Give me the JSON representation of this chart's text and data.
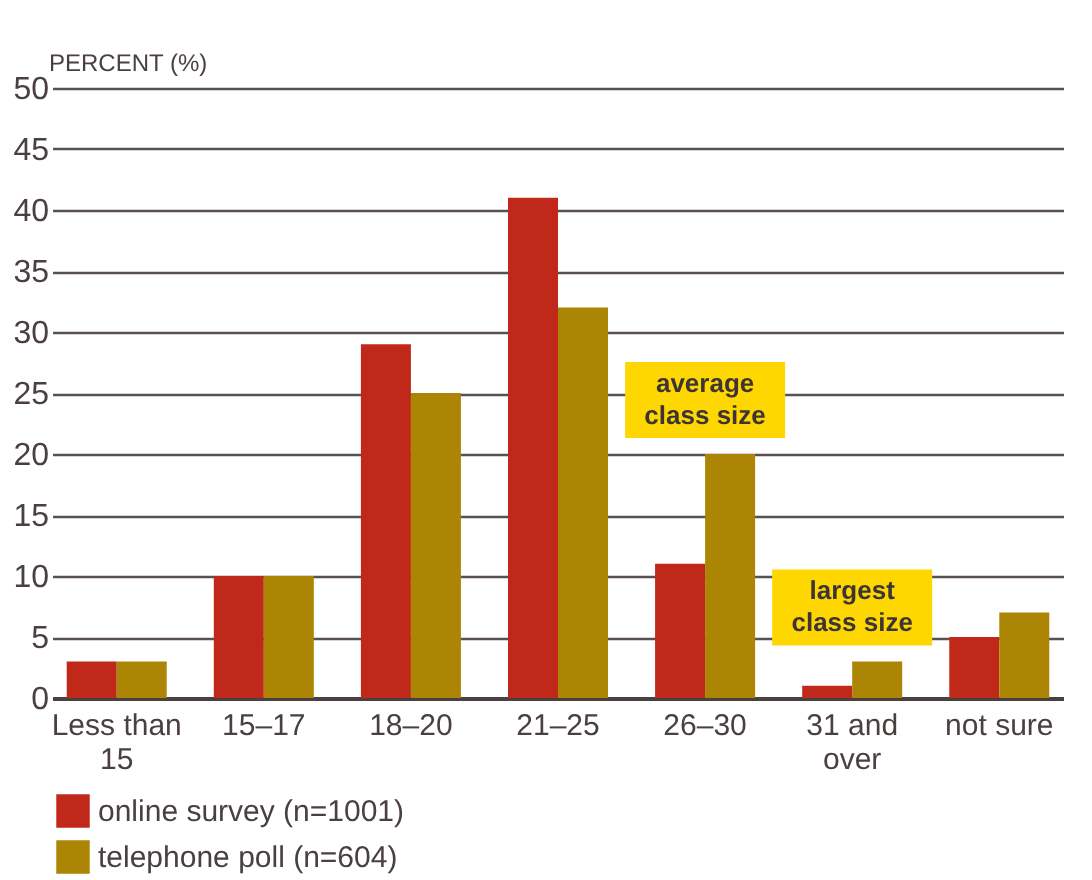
{
  "chart_data": {
    "type": "bar",
    "ylabel": "PERCENT (%)",
    "categories": [
      "Less than 15",
      "15–17",
      "18–20",
      "21–25",
      "26–30",
      "31 and over",
      "not sure"
    ],
    "series": [
      {
        "name": "online survey (n=1001)",
        "color": "#c0291a",
        "values": [
          3,
          10,
          29,
          41,
          11,
          1,
          5
        ]
      },
      {
        "name": "telephone poll (n=604)",
        "color": "#ad8504",
        "values": [
          3,
          10,
          25,
          32,
          20,
          3,
          7
        ]
      }
    ],
    "ylim": [
      0,
      50
    ],
    "yticks": [
      0,
      5,
      10,
      15,
      20,
      25,
      30,
      35,
      40,
      45,
      50
    ],
    "grid": "y",
    "legend": "bottom",
    "annotations": [
      {
        "text": "average class size",
        "x": "26–30",
        "y": 20
      },
      {
        "text": "largest class size",
        "x": "31 and over",
        "y": 3
      }
    ]
  }
}
